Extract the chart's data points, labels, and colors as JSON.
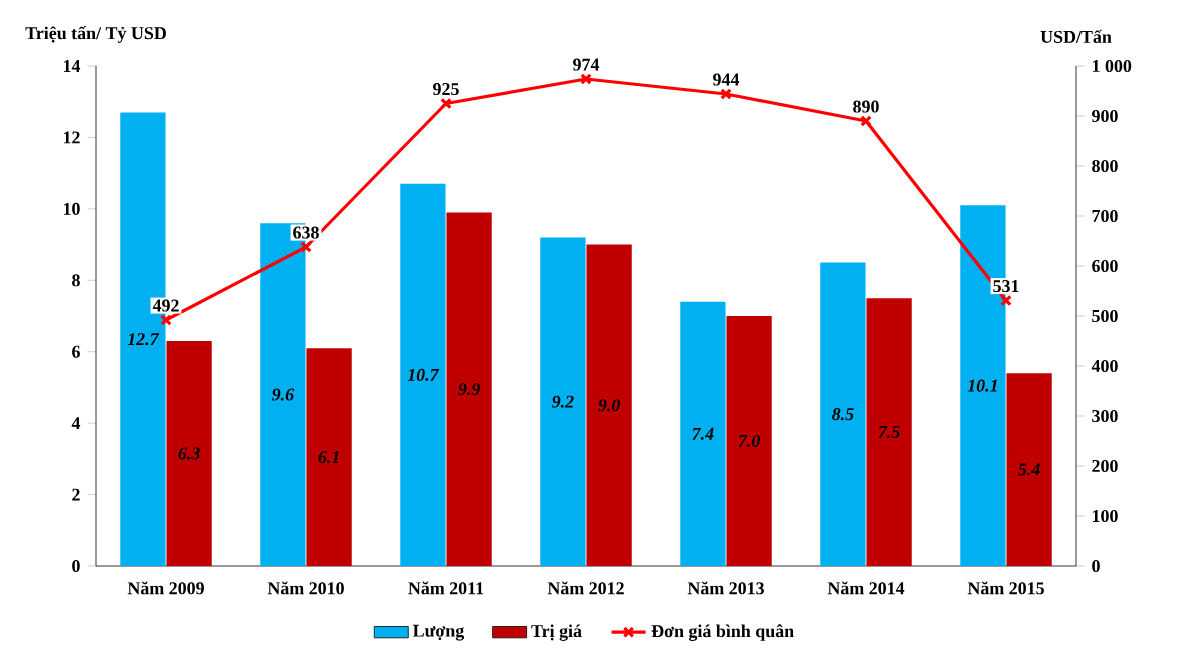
{
  "chart_data": {
    "type": "bar",
    "ylabel": "Triệu tấn/ Tỷ USD",
    "y2label": "USD/Tấn",
    "categories": [
      "Năm 2009",
      "Năm 2010",
      "Năm 2011",
      "Năm 2012",
      "Năm 2013",
      "Năm 2014",
      "Năm 2015"
    ],
    "series": [
      {
        "name": "Lượng",
        "color": "#00b0f0",
        "values": [
          12.7,
          9.6,
          10.7,
          9.2,
          7.4,
          8.5,
          10.1
        ],
        "value_labels": [
          "12.7",
          "9.6",
          "10.7",
          "9.2",
          "7.4",
          "8.5",
          "10.1"
        ]
      },
      {
        "name": "Trị giá",
        "color": "#c00000",
        "values": [
          6.3,
          6.1,
          9.9,
          9.0,
          7.0,
          7.5,
          5.4
        ],
        "value_labels": [
          "6.3",
          "6.1",
          "9.9",
          "9.0",
          "7.0",
          "7.5",
          "5.4"
        ]
      },
      {
        "name": "Đơn giá bình quân",
        "type": "line",
        "axis": "y2",
        "color": "#ff0000",
        "marker": "cross",
        "values": [
          492,
          638,
          925,
          974,
          944,
          890,
          531
        ],
        "value_labels": [
          "492",
          "638",
          "925",
          "974",
          "944",
          "890",
          "531"
        ]
      }
    ],
    "ylim": [
      0,
      14
    ],
    "yticks": [
      0,
      2,
      4,
      6,
      8,
      10,
      12,
      14
    ],
    "y2lim": [
      0,
      1000
    ],
    "y2ticks": [
      0,
      100,
      200,
      300,
      400,
      500,
      600,
      700,
      800,
      900,
      {
        "value": 1000,
        "label": "1 000"
      }
    ],
    "grid": false,
    "legend": "bottom"
  }
}
